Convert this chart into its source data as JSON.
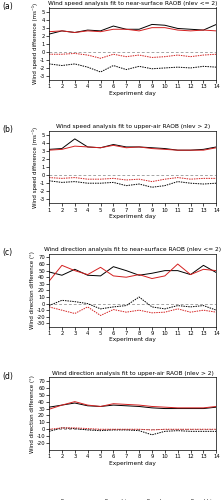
{
  "days": [
    1,
    2,
    3,
    4,
    5,
    6,
    7,
    8,
    9,
    10,
    11,
    12,
    13,
    14
  ],
  "panel_a": {
    "title": "Wind speed analysis fit to near-surface RAOB (nlev <= 2)",
    "ylabel": "Wind speed difference (ms⁻¹)",
    "ylim": [
      -3.5,
      5.5
    ],
    "yticks": [
      -3,
      -2,
      -1,
      0,
      1,
      2,
      3,
      4,
      5
    ],
    "ex_uv_rmse": [
      2.2,
      2.6,
      2.4,
      2.7,
      2.6,
      3.2,
      2.8,
      2.8,
      3.4,
      3.3,
      2.9,
      2.8,
      2.7,
      3.4
    ],
    "ex_uv_bias": [
      -1.5,
      -1.7,
      -1.5,
      -1.9,
      -2.5,
      -1.7,
      -2.2,
      -1.8,
      -2.1,
      -2.0,
      -1.9,
      -2.0,
      -1.8,
      -1.9
    ],
    "ex_sd_rmse": [
      2.5,
      2.6,
      2.4,
      2.6,
      2.5,
      2.8,
      2.8,
      2.6,
      3.0,
      3.0,
      2.7,
      2.6,
      2.7,
      2.6
    ],
    "ex_sd_bias": [
      -0.3,
      -0.3,
      -0.2,
      -0.4,
      -0.8,
      -0.3,
      -0.6,
      -0.4,
      -0.7,
      -0.6,
      -0.4,
      -0.6,
      -0.4,
      -0.3
    ]
  },
  "panel_b": {
    "title": "Wind speed analysis fit to upper-air RAOB (nlev > 2)",
    "ylabel": "Wind speed difference (ms⁻¹)",
    "ylim": [
      -3.5,
      5.5
    ],
    "yticks": [
      -3,
      -2,
      -1,
      0,
      1,
      2,
      3,
      4,
      5
    ],
    "ex_uv_rmse": [
      3.2,
      3.3,
      4.5,
      3.5,
      3.4,
      3.8,
      3.5,
      3.5,
      3.4,
      3.3,
      3.1,
      3.1,
      3.2,
      3.5
    ],
    "ex_uv_bias": [
      -0.7,
      -0.9,
      -0.8,
      -1.0,
      -1.0,
      -0.9,
      -1.3,
      -1.1,
      -1.5,
      -1.3,
      -0.8,
      -1.0,
      -1.1,
      -1.0
    ],
    "ex_sd_rmse": [
      3.1,
      3.2,
      3.6,
      3.5,
      3.4,
      3.7,
      3.4,
      3.5,
      3.3,
      3.2,
      3.1,
      3.1,
      3.1,
      3.4
    ],
    "ex_sd_bias": [
      -0.3,
      -0.4,
      -0.3,
      -0.5,
      -0.5,
      -0.4,
      -0.6,
      -0.5,
      -0.8,
      -0.5,
      -0.3,
      -0.5,
      -0.4,
      -0.4
    ]
  },
  "panel_c": {
    "title": "Wind direction analysis fit to near-surface RAOB (nlev <= 2)",
    "ylabel": "Wind direction difference (°)",
    "ylim": [
      -35,
      75
    ],
    "yticks": [
      -30,
      -20,
      -10,
      0,
      10,
      20,
      30,
      40,
      50,
      60,
      70
    ],
    "ex_uv_rmse": [
      48,
      43,
      52,
      43,
      42,
      56,
      50,
      43,
      46,
      50,
      50,
      44,
      58,
      47
    ],
    "ex_uv_bias": [
      -3,
      5,
      3,
      0,
      -8,
      -5,
      -3,
      10,
      -5,
      -8,
      -3,
      -5,
      -3,
      -10
    ],
    "ex_sd_rmse": [
      34,
      58,
      50,
      44,
      55,
      42,
      40,
      44,
      38,
      42,
      60,
      44,
      52,
      50
    ],
    "ex_sd_bias": [
      -5,
      -10,
      -15,
      -5,
      -18,
      -9,
      -13,
      -10,
      -14,
      -13,
      -8,
      -13,
      -10,
      -13
    ]
  },
  "panel_d": {
    "title": "Wind direction analysis fit to upper-air RAOB (nlev > 2)",
    "ylabel": "Wind direction difference (°)",
    "ylim": [
      -30,
      75
    ],
    "yticks": [
      -20,
      -10,
      0,
      10,
      20,
      30,
      40,
      50,
      60,
      70
    ],
    "ex_uv_rmse": [
      32,
      35,
      38,
      34,
      33,
      35,
      34,
      33,
      31,
      30,
      30,
      30,
      30,
      32
    ],
    "ex_uv_bias": [
      -3,
      2,
      1,
      -1,
      -2,
      -1,
      -1,
      -2,
      -8,
      -3,
      -2,
      -3,
      -3,
      -3
    ],
    "ex_sd_rmse": [
      29,
      35,
      40,
      35,
      33,
      37,
      36,
      35,
      33,
      32,
      31,
      31,
      31,
      33
    ],
    "ex_sd_bias": [
      0,
      2,
      2,
      1,
      0,
      0,
      0,
      0,
      -1,
      0,
      0,
      0,
      0,
      0
    ]
  },
  "colors": {
    "black": "#000000",
    "red": "#d42020"
  }
}
